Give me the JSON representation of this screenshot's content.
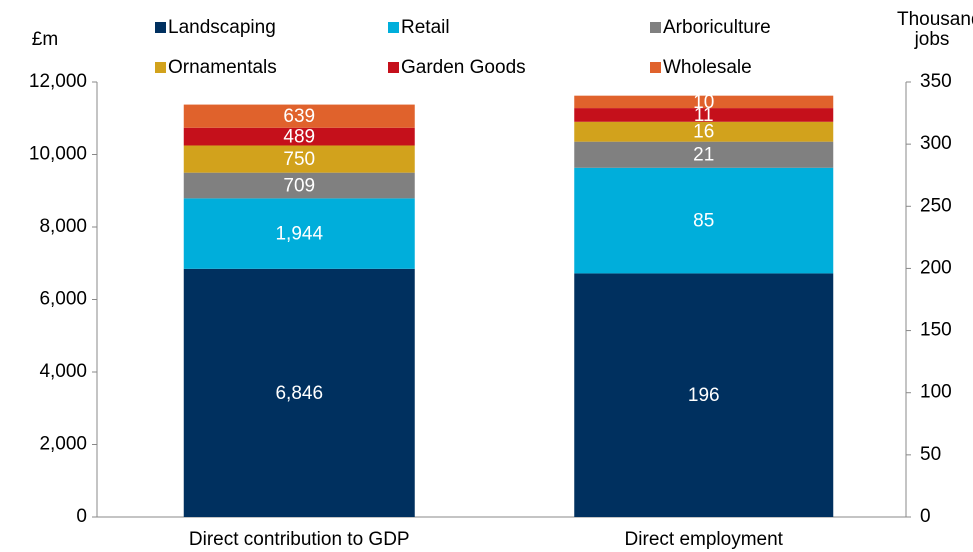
{
  "chart_data": {
    "type": "stacked_bar",
    "ylabel": "£m",
    "y2label": "Thousand jobs",
    "categories": [
      "Direct contribution to GDP",
      "Direct employment"
    ],
    "category_axes": [
      "y",
      "y2"
    ],
    "series": [
      {
        "name": "Landscaping",
        "color": "#00305f",
        "values": [
          6846,
          196
        ],
        "value_labels": [
          "6,846",
          "196"
        ]
      },
      {
        "name": "Retail",
        "color": "#00aedb",
        "values": [
          1944,
          85
        ],
        "value_labels": [
          "1,944",
          "85"
        ]
      },
      {
        "name": "Arboriculture",
        "color": "#808080",
        "values": [
          709,
          21
        ]
      },
      {
        "name": "Ornamentals",
        "color": "#d2a21c",
        "values": [
          750,
          16
        ]
      },
      {
        "name": "Garden Goods",
        "color": "#c5101b",
        "values": [
          489,
          11
        ]
      },
      {
        "name": "Wholesale",
        "color": "#e0622c",
        "values": [
          639,
          10
        ]
      }
    ],
    "ylim": [
      0,
      12000
    ],
    "yticks": [
      0,
      {
        "value": 2000,
        "label": "2,000"
      },
      {
        "value": 4000,
        "label": "4,000"
      },
      {
        "value": 6000,
        "label": "6,000"
      },
      {
        "value": 8000,
        "label": "8,000"
      },
      {
        "value": 10000,
        "label": "10,000"
      },
      {
        "value": 12000,
        "label": "12,000"
      }
    ],
    "y2lim": [
      0,
      350
    ],
    "y2ticks": [
      0,
      50,
      100,
      150,
      200,
      250,
      300,
      350
    ],
    "legend": "top"
  }
}
